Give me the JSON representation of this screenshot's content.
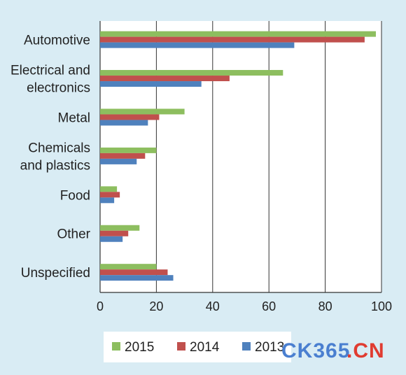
{
  "chart_data": {
    "type": "bar",
    "orientation": "horizontal",
    "categories": [
      [
        "Automotive"
      ],
      [
        "Electrical and",
        "electronics"
      ],
      [
        "Metal"
      ],
      [
        "Chemicals",
        "and plastics"
      ],
      [
        "Food"
      ],
      [
        "Other"
      ],
      [
        "Unspecified"
      ]
    ],
    "series": [
      {
        "name": "2015",
        "color": "#8dbe5f",
        "values": [
          98,
          65,
          30,
          20,
          6,
          14,
          20
        ]
      },
      {
        "name": "2014",
        "color": "#c0504d",
        "values": [
          94,
          46,
          21,
          16,
          7,
          10,
          24
        ]
      },
      {
        "name": "2013",
        "color": "#4f81bd",
        "values": [
          69,
          36,
          17,
          13,
          5,
          8,
          26
        ]
      }
    ],
    "xlim": [
      0,
      100
    ],
    "x_ticks": [
      "0",
      "20",
      "40",
      "60",
      "80",
      "100"
    ],
    "grid": true,
    "legend_position": "bottom",
    "title": "",
    "xlabel": "",
    "ylabel": ""
  },
  "watermark": {
    "part1": "CK365",
    "part2": ".CN",
    "color1": "#4a7fd0",
    "color2": "#e03c31"
  }
}
